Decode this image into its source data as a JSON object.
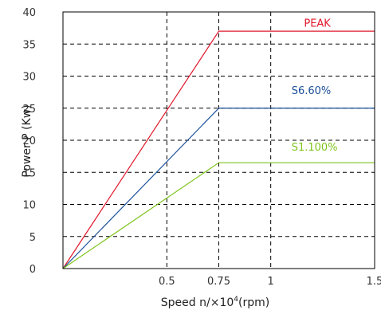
{
  "chart_data": {
    "type": "line",
    "xlabel_main": "Speed  n/×10",
    "xlabel_sup": "4",
    "xlabel_unit": "(rpm)",
    "ylabel": "Power P (Kw)",
    "xlim": [
      0,
      1.5
    ],
    "ylim": [
      0,
      40
    ],
    "xticks": [
      {
        "value": 0.5,
        "label": "0.5"
      },
      {
        "value": 0.75,
        "label": "0.75"
      },
      {
        "value": 1,
        "label": "1"
      },
      {
        "value": 1.5,
        "label": "1.5"
      }
    ],
    "yticks": [
      {
        "value": 0,
        "label": "0"
      },
      {
        "value": 5,
        "label": "5"
      },
      {
        "value": 10,
        "label": "10"
      },
      {
        "value": 15,
        "label": "15"
      },
      {
        "value": 20,
        "label": "20"
      },
      {
        "value": 25,
        "label": "25"
      },
      {
        "value": 30,
        "label": "30"
      },
      {
        "value": 35,
        "label": "35"
      },
      {
        "value": 40,
        "label": "40"
      }
    ],
    "grid_y": [
      5,
      10,
      15,
      20,
      25,
      30,
      35
    ],
    "grid_x": [
      0.5,
      0.75,
      1
    ],
    "series": [
      {
        "name": "PEAK",
        "color": "#e0182d",
        "label_at": [
          1.16,
          37.7
        ],
        "x": [
          0,
          0.75,
          1.5
        ],
        "y": [
          0,
          37,
          37
        ]
      },
      {
        "name": "S6.60%",
        "color": "#1a4f99",
        "label_at": [
          1.1,
          27.2
        ],
        "x": [
          0,
          0.75,
          1.5
        ],
        "y": [
          0,
          25,
          25
        ]
      },
      {
        "name": "S1.100%",
        "color": "#7fc31c",
        "label_at": [
          1.1,
          18.4
        ],
        "x": [
          0,
          0.75,
          1.5
        ],
        "y": [
          0,
          16.5,
          16.5
        ]
      }
    ]
  }
}
